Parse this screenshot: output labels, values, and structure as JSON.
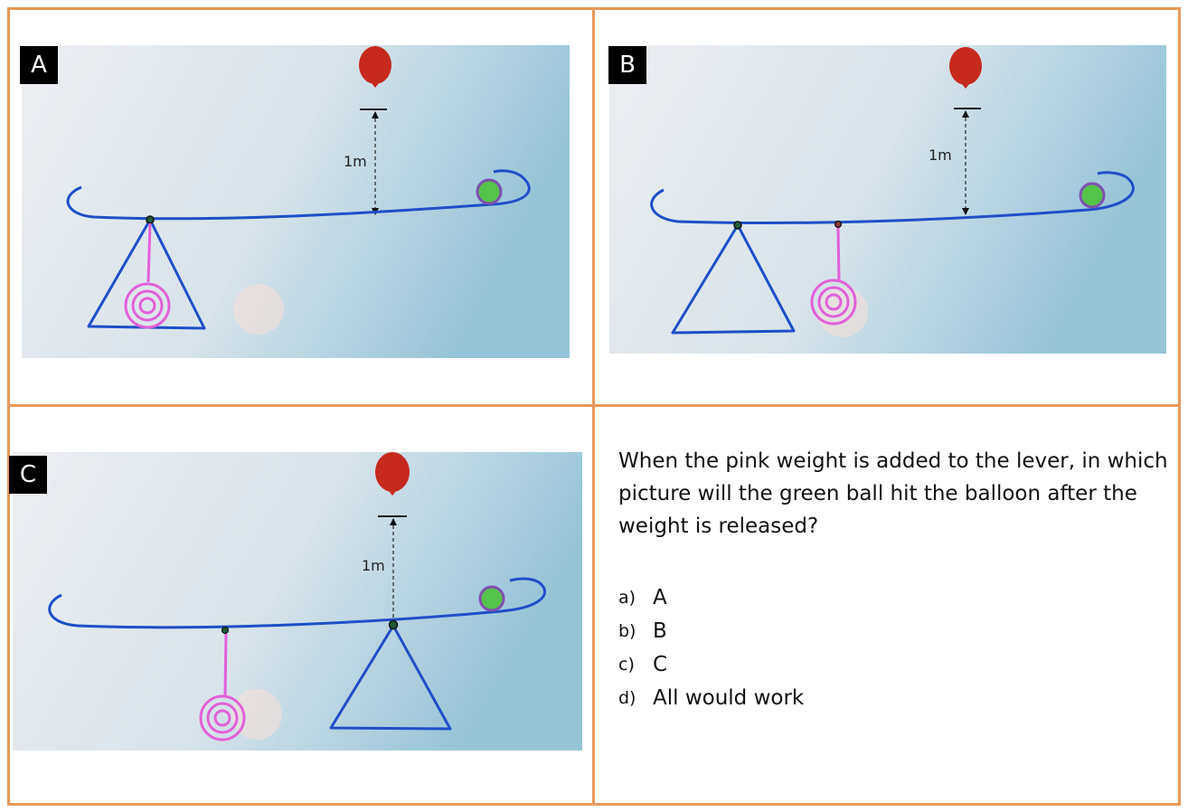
{
  "panels": [
    {
      "label": "A",
      "distance_label": "1m"
    },
    {
      "label": "B",
      "distance_label": "1m"
    },
    {
      "label": "C",
      "distance_label": "1m"
    }
  ],
  "question": "When the pink weight is added to the lever, in which picture will the green ball hit the balloon after the weight is released?",
  "options": [
    {
      "letter": "a)",
      "text": "A"
    },
    {
      "letter": "b)",
      "text": "B"
    },
    {
      "letter": "c)",
      "text": "C"
    },
    {
      "letter": "d)",
      "text": "All would work"
    }
  ],
  "colors": {
    "border": "#e8995a",
    "lever": "#1f4fc8",
    "weight": "#e060d8",
    "ball": "#55c24a",
    "ball_ring": "#8050b0",
    "balloon": "#c62a1e"
  }
}
